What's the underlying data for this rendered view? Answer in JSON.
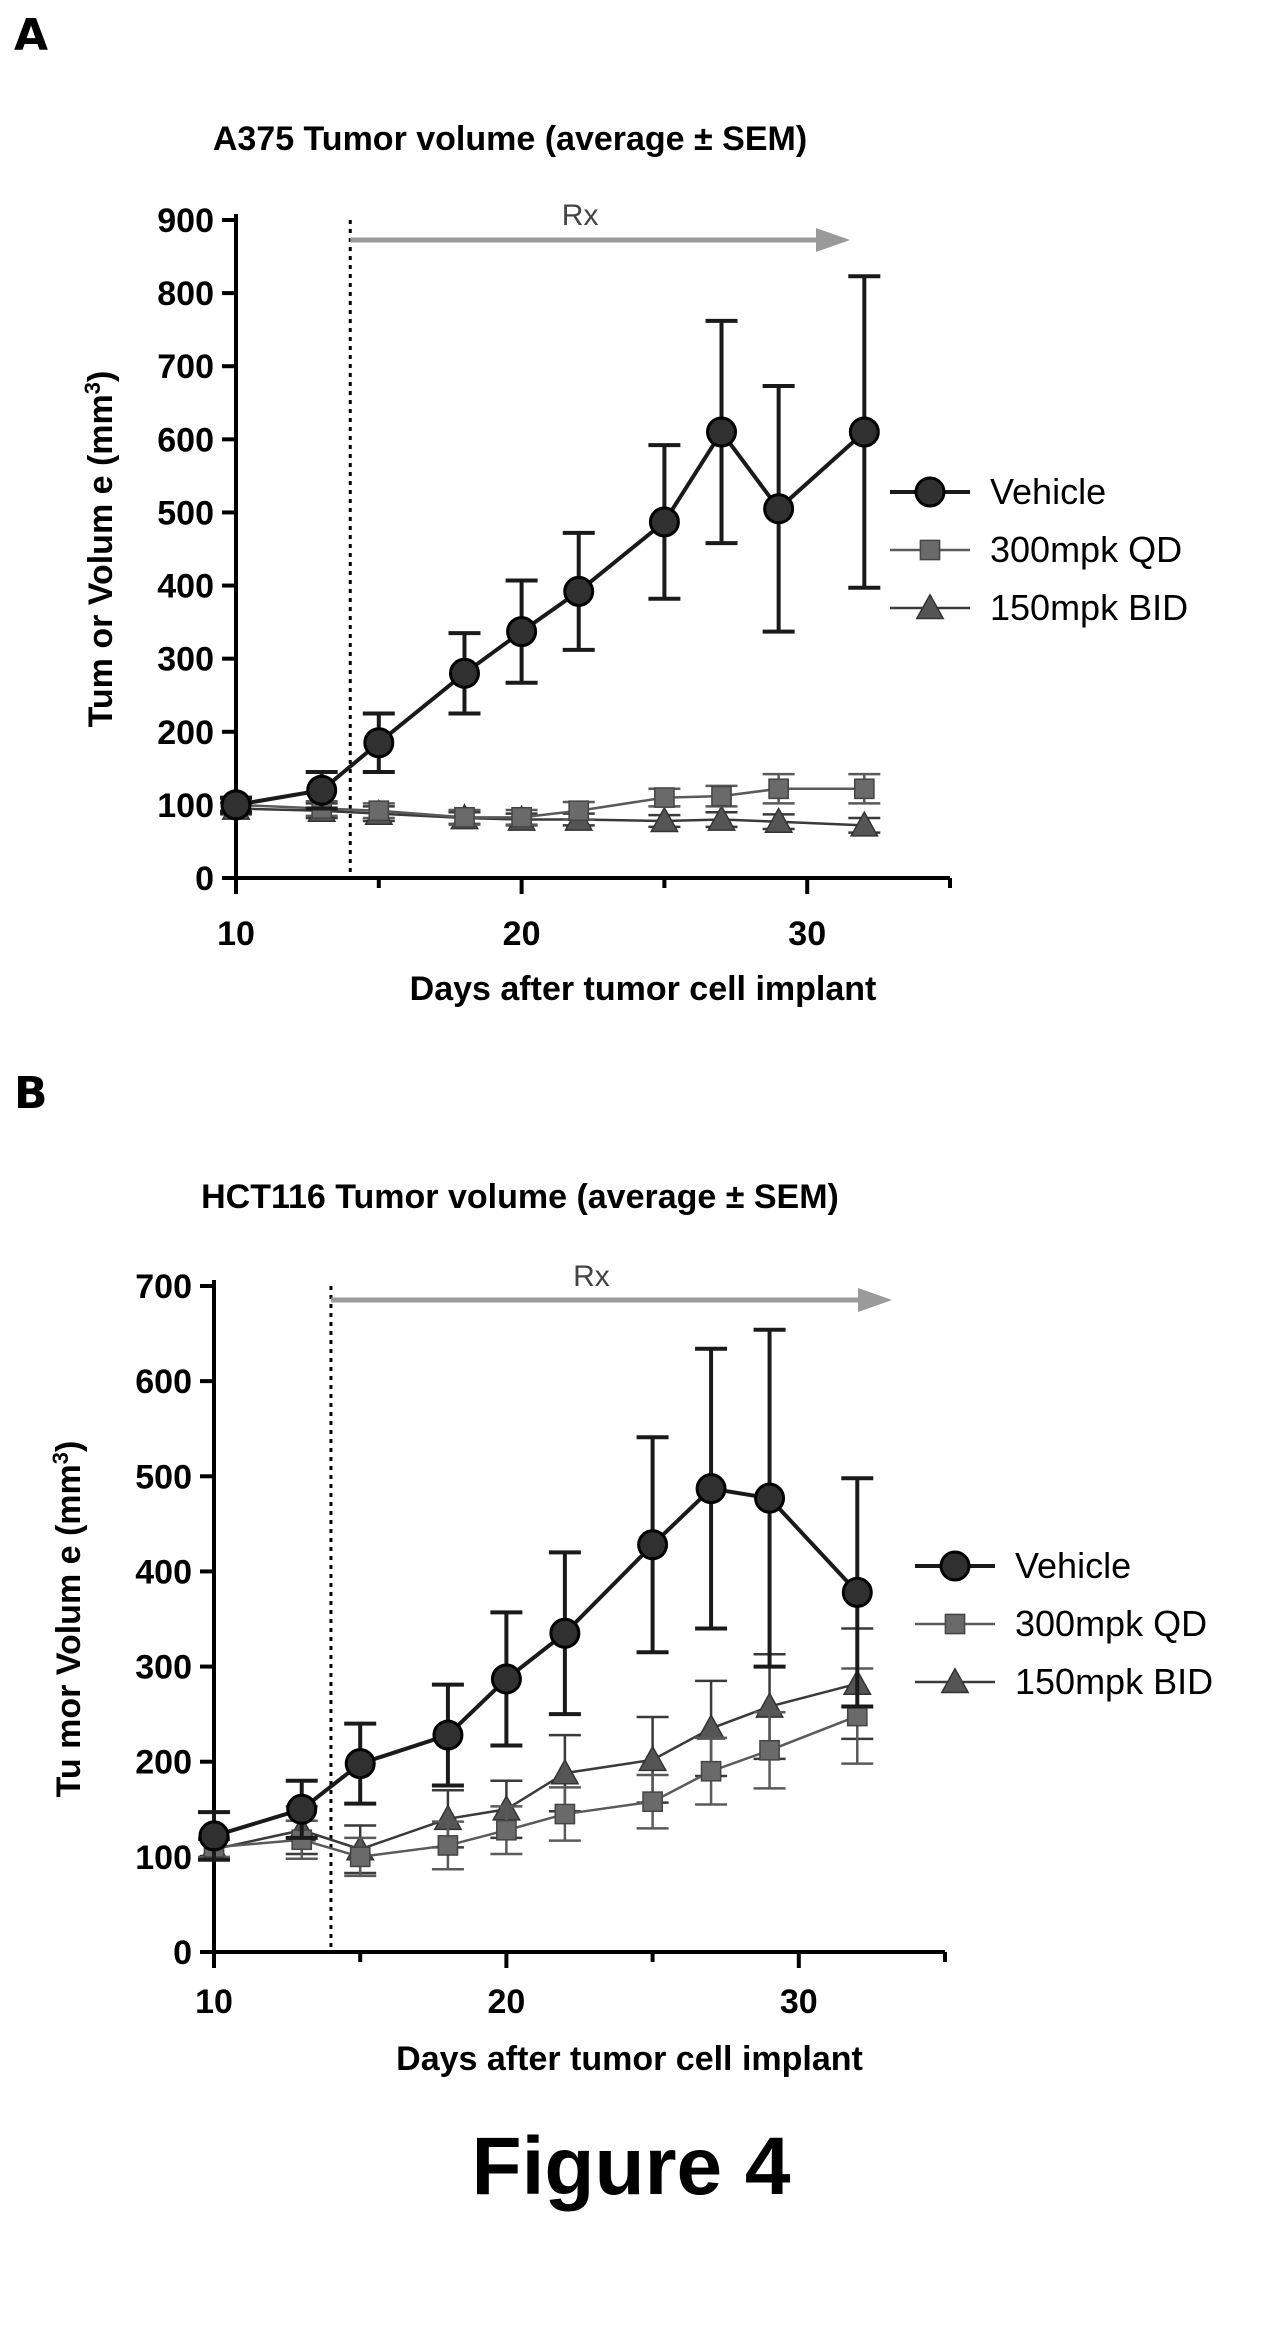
{
  "figure_label": "Figure 4",
  "chart_data": [
    {
      "panel": "A",
      "type": "line",
      "title": "A375 Tumor volume (average ± SEM)",
      "xlabel": "Days after tumor cell implant",
      "ylabel": "Tum or Volum e (mm",
      "ylabel_sup": "3",
      "ylabel_end": ")",
      "xlim": [
        10,
        35
      ],
      "ylim": [
        0,
        900
      ],
      "xticks": [
        10,
        20,
        30
      ],
      "yticks": [
        0,
        100,
        200,
        300,
        400,
        500,
        600,
        700,
        800,
        900
      ],
      "annotation": {
        "text": "Rx",
        "treatment_start_day": 14
      },
      "legend_position": "right",
      "series": [
        {
          "name": "Vehicle",
          "marker": "circle",
          "points": [
            {
              "x": 10,
              "y": 100,
              "err": 10
            },
            {
              "x": 13,
              "y": 120,
              "err": 25
            },
            {
              "x": 15,
              "y": 185,
              "err": 40
            },
            {
              "x": 18,
              "y": 280,
              "err": 55
            },
            {
              "x": 20,
              "y": 337,
              "err": 70
            },
            {
              "x": 22,
              "y": 392,
              "err": 80
            },
            {
              "x": 25,
              "y": 487,
              "err": 105
            },
            {
              "x": 27,
              "y": 610,
              "err": 152
            },
            {
              "x": 29,
              "y": 505,
              "err": 168
            },
            {
              "x": 32,
              "y": 610,
              "err": 213
            }
          ]
        },
        {
          "name": "300mpk QD",
          "marker": "square",
          "points": [
            {
              "x": 10,
              "y": 100,
              "err": 8
            },
            {
              "x": 13,
              "y": 95,
              "err": 10
            },
            {
              "x": 15,
              "y": 92,
              "err": 10
            },
            {
              "x": 18,
              "y": 83,
              "err": 10
            },
            {
              "x": 20,
              "y": 83,
              "err": 10
            },
            {
              "x": 22,
              "y": 92,
              "err": 12
            },
            {
              "x": 25,
              "y": 110,
              "err": 12
            },
            {
              "x": 27,
              "y": 112,
              "err": 14
            },
            {
              "x": 29,
              "y": 122,
              "err": 20
            },
            {
              "x": 32,
              "y": 122,
              "err": 20
            }
          ]
        },
        {
          "name": "150mpk BID",
          "marker": "triangle",
          "points": [
            {
              "x": 10,
              "y": 95,
              "err": 8
            },
            {
              "x": 13,
              "y": 92,
              "err": 10
            },
            {
              "x": 15,
              "y": 88,
              "err": 10
            },
            {
              "x": 18,
              "y": 82,
              "err": 8
            },
            {
              "x": 20,
              "y": 80,
              "err": 8
            },
            {
              "x": 22,
              "y": 80,
              "err": 8
            },
            {
              "x": 25,
              "y": 78,
              "err": 8
            },
            {
              "x": 27,
              "y": 80,
              "err": 10
            },
            {
              "x": 29,
              "y": 77,
              "err": 10
            },
            {
              "x": 32,
              "y": 72,
              "err": 10
            }
          ]
        }
      ]
    },
    {
      "panel": "B",
      "type": "line",
      "title": "HCT116 Tumor volume (average ± SEM)",
      "xlabel": "Days after tumor cell implant",
      "ylabel": "Tu mor Volum e (mm",
      "ylabel_sup": "3",
      "ylabel_end": ")",
      "xlim": [
        10,
        35
      ],
      "ylim": [
        0,
        700
      ],
      "xticks": [
        10,
        20,
        30
      ],
      "yticks": [
        0,
        100,
        200,
        300,
        400,
        500,
        600,
        700
      ],
      "annotation": {
        "text": "Rx",
        "treatment_start_day": 14
      },
      "legend_position": "right",
      "series": [
        {
          "name": "Vehicle",
          "marker": "circle",
          "points": [
            {
              "x": 10,
              "y": 122,
              "err": 25
            },
            {
              "x": 13,
              "y": 150,
              "err": 30
            },
            {
              "x": 15,
              "y": 198,
              "err": 42
            },
            {
              "x": 18,
              "y": 228,
              "err": 53
            },
            {
              "x": 20,
              "y": 287,
              "err": 70
            },
            {
              "x": 22,
              "y": 335,
              "err": 85
            },
            {
              "x": 25,
              "y": 428,
              "err": 113
            },
            {
              "x": 27,
              "y": 487,
              "err": 147
            },
            {
              "x": 29,
              "y": 477,
              "err": 177
            },
            {
              "x": 32,
              "y": 378,
              "err": 120
            }
          ]
        },
        {
          "name": "300mpk QD",
          "marker": "square",
          "points": [
            {
              "x": 10,
              "y": 110,
              "err": 10
            },
            {
              "x": 13,
              "y": 118,
              "err": 20
            },
            {
              "x": 15,
              "y": 100,
              "err": 20
            },
            {
              "x": 18,
              "y": 112,
              "err": 25
            },
            {
              "x": 20,
              "y": 128,
              "err": 25
            },
            {
              "x": 22,
              "y": 145,
              "err": 28
            },
            {
              "x": 25,
              "y": 158,
              "err": 28
            },
            {
              "x": 27,
              "y": 190,
              "err": 35
            },
            {
              "x": 29,
              "y": 212,
              "err": 40
            },
            {
              "x": 32,
              "y": 248,
              "err": 50
            }
          ]
        },
        {
          "name": "150mpk BID",
          "marker": "triangle",
          "points": [
            {
              "x": 10,
              "y": 108,
              "err": 10
            },
            {
              "x": 13,
              "y": 128,
              "err": 25
            },
            {
              "x": 15,
              "y": 108,
              "err": 25
            },
            {
              "x": 18,
              "y": 140,
              "err": 30
            },
            {
              "x": 20,
              "y": 150,
              "err": 30
            },
            {
              "x": 22,
              "y": 188,
              "err": 40
            },
            {
              "x": 25,
              "y": 202,
              "err": 45
            },
            {
              "x": 27,
              "y": 235,
              "err": 50
            },
            {
              "x": 29,
              "y": 258,
              "err": 55
            },
            {
              "x": 32,
              "y": 282,
              "err": 58
            }
          ]
        }
      ]
    }
  ]
}
